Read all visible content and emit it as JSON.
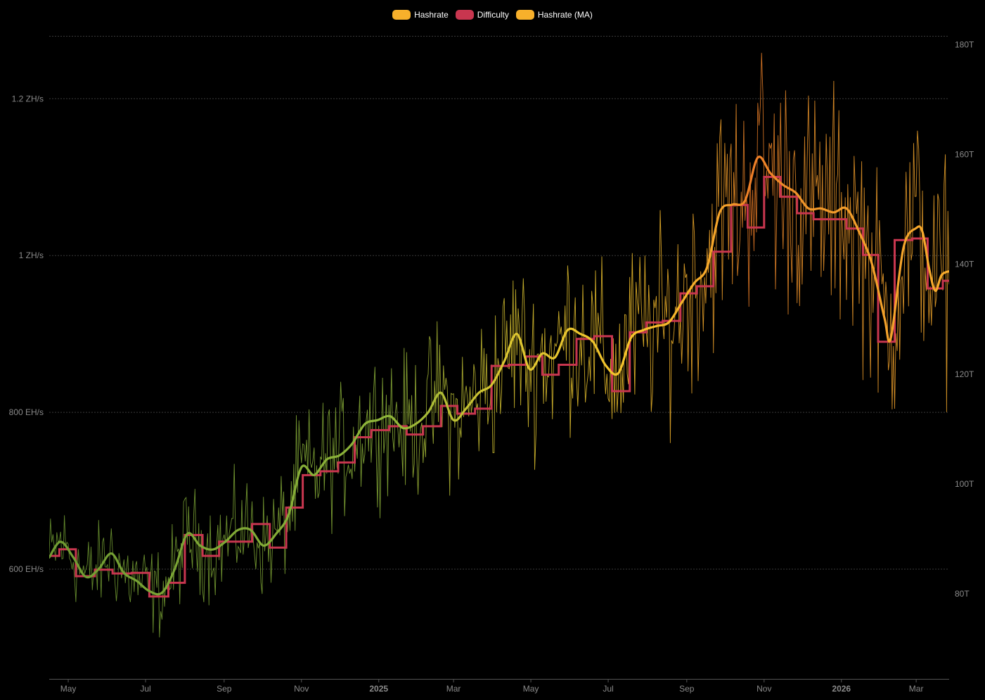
{
  "legend": {
    "items": [
      {
        "label": "Hashrate",
        "color": "#f7b02b"
      },
      {
        "label": "Difficulty",
        "color": "#c8364f"
      },
      {
        "label": "Hashrate (MA)",
        "color": "#f7b02b"
      }
    ]
  },
  "chart_data": {
    "type": "line",
    "title": "",
    "grid": true,
    "legend_position": "top-center",
    "x_range": [
      "2024-04-16",
      "2026-03-27"
    ],
    "x_ticks": [
      {
        "label": "May",
        "date": "2024-05-01",
        "bold": false
      },
      {
        "label": "Jul",
        "date": "2024-07-01",
        "bold": false
      },
      {
        "label": "Sep",
        "date": "2024-09-01",
        "bold": false
      },
      {
        "label": "Nov",
        "date": "2024-11-01",
        "bold": false
      },
      {
        "label": "2025",
        "date": "2025-01-01",
        "bold": true
      },
      {
        "label": "Mar",
        "date": "2025-03-01",
        "bold": false
      },
      {
        "label": "May",
        "date": "2025-05-01",
        "bold": false
      },
      {
        "label": "Jul",
        "date": "2025-07-01",
        "bold": false
      },
      {
        "label": "Sep",
        "date": "2025-09-01",
        "bold": false
      },
      {
        "label": "Nov",
        "date": "2025-11-01",
        "bold": false
      },
      {
        "label": "2026",
        "date": "2026-01-01",
        "bold": true
      },
      {
        "label": "Mar",
        "date": "2026-03-01",
        "bold": false
      }
    ],
    "y_left": {
      "unit": "EH/s",
      "range": [
        460,
        1290
      ],
      "ticks": [
        {
          "value": 600,
          "label": "600 EH/s"
        },
        {
          "value": 800,
          "label": "800 EH/s"
        },
        {
          "value": 1000,
          "label": "1 ZH/s"
        },
        {
          "value": 1200,
          "label": "1.2 ZH/s"
        }
      ]
    },
    "y_right": {
      "unit": "T",
      "range": [
        64.5,
        183
      ],
      "ticks": [
        {
          "value": 80,
          "label": "80T"
        },
        {
          "value": 100,
          "label": "100T"
        },
        {
          "value": 120,
          "label": "120T"
        },
        {
          "value": 140,
          "label": "140T"
        },
        {
          "value": 160,
          "label": "160T"
        },
        {
          "value": 180,
          "label": "180T"
        }
      ]
    },
    "series": [
      {
        "name": "Hashrate (MA)",
        "axis": "left",
        "points": [
          [
            "2024-04-16",
            615
          ],
          [
            "2024-04-25",
            635
          ],
          [
            "2024-05-05",
            615
          ],
          [
            "2024-05-15",
            590
          ],
          [
            "2024-05-25",
            600
          ],
          [
            "2024-06-04",
            620
          ],
          [
            "2024-06-14",
            595
          ],
          [
            "2024-06-24",
            585
          ],
          [
            "2024-07-04",
            572
          ],
          [
            "2024-07-14",
            570
          ],
          [
            "2024-07-24",
            600
          ],
          [
            "2024-08-03",
            645
          ],
          [
            "2024-08-13",
            630
          ],
          [
            "2024-08-23",
            625
          ],
          [
            "2024-09-02",
            635
          ],
          [
            "2024-09-12",
            650
          ],
          [
            "2024-09-22",
            650
          ],
          [
            "2024-10-02",
            630
          ],
          [
            "2024-10-12",
            645
          ],
          [
            "2024-10-22",
            670
          ],
          [
            "2024-11-01",
            730
          ],
          [
            "2024-11-11",
            720
          ],
          [
            "2024-11-21",
            740
          ],
          [
            "2024-12-01",
            745
          ],
          [
            "2024-12-11",
            760
          ],
          [
            "2024-12-21",
            785
          ],
          [
            "2024-12-31",
            790
          ],
          [
            "2025-01-10",
            795
          ],
          [
            "2025-01-20",
            780
          ],
          [
            "2025-01-30",
            785
          ],
          [
            "2025-02-09",
            800
          ],
          [
            "2025-02-19",
            825
          ],
          [
            "2025-03-01",
            790
          ],
          [
            "2025-03-11",
            805
          ],
          [
            "2025-03-21",
            825
          ],
          [
            "2025-03-31",
            835
          ],
          [
            "2025-04-10",
            865
          ],
          [
            "2025-04-20",
            900
          ],
          [
            "2025-04-30",
            855
          ],
          [
            "2025-05-10",
            875
          ],
          [
            "2025-05-20",
            870
          ],
          [
            "2025-05-30",
            905
          ],
          [
            "2025-06-09",
            900
          ],
          [
            "2025-06-19",
            890
          ],
          [
            "2025-06-29",
            860
          ],
          [
            "2025-07-09",
            850
          ],
          [
            "2025-07-19",
            895
          ],
          [
            "2025-07-29",
            905
          ],
          [
            "2025-08-08",
            910
          ],
          [
            "2025-08-18",
            915
          ],
          [
            "2025-08-28",
            940
          ],
          [
            "2025-09-07",
            965
          ],
          [
            "2025-09-17",
            985
          ],
          [
            "2025-09-27",
            1055
          ],
          [
            "2025-10-07",
            1065
          ],
          [
            "2025-10-17",
            1070
          ],
          [
            "2025-10-27",
            1125
          ],
          [
            "2025-11-06",
            1105
          ],
          [
            "2025-11-16",
            1090
          ],
          [
            "2025-11-26",
            1080
          ],
          [
            "2025-12-06",
            1060
          ],
          [
            "2025-12-16",
            1060
          ],
          [
            "2025-12-26",
            1055
          ],
          [
            "2026-01-05",
            1060
          ],
          [
            "2026-01-15",
            1030
          ],
          [
            "2026-01-25",
            990
          ],
          [
            "2026-02-04",
            920
          ],
          [
            "2026-02-09",
            895
          ],
          [
            "2026-02-19",
            1010
          ],
          [
            "2026-03-01",
            1035
          ],
          [
            "2026-03-06",
            1030
          ],
          [
            "2026-03-11",
            985
          ],
          [
            "2026-03-16",
            955
          ],
          [
            "2026-03-21",
            975
          ],
          [
            "2026-03-27",
            980
          ]
        ]
      },
      {
        "name": "Difficulty",
        "axis": "right",
        "step": true,
        "points": [
          [
            "2024-04-16",
            86.9
          ],
          [
            "2024-04-24",
            88.1
          ],
          [
            "2024-05-07",
            83.2
          ],
          [
            "2024-05-22",
            84.4
          ],
          [
            "2024-06-05",
            83.7
          ],
          [
            "2024-06-20",
            83.8
          ],
          [
            "2024-07-04",
            79.5
          ],
          [
            "2024-07-19",
            82.0
          ],
          [
            "2024-08-01",
            90.7
          ],
          [
            "2024-08-15",
            86.9
          ],
          [
            "2024-08-28",
            89.5
          ],
          [
            "2024-09-10",
            89.5
          ],
          [
            "2024-09-23",
            92.7
          ],
          [
            "2024-10-07",
            88.4
          ],
          [
            "2024-10-20",
            95.7
          ],
          [
            "2024-11-02",
            101.6
          ],
          [
            "2024-11-16",
            102.3
          ],
          [
            "2024-11-30",
            103.9
          ],
          [
            "2024-12-13",
            108.5
          ],
          [
            "2024-12-26",
            109.8
          ],
          [
            "2025-01-09",
            110.5
          ],
          [
            "2025-01-23",
            109.0
          ],
          [
            "2025-02-05",
            110.5
          ],
          [
            "2025-02-19",
            114.2
          ],
          [
            "2025-03-04",
            112.8
          ],
          [
            "2025-03-18",
            113.7
          ],
          [
            "2025-03-31",
            121.5
          ],
          [
            "2025-04-14",
            121.7
          ],
          [
            "2025-04-27",
            123.2
          ],
          [
            "2025-05-10",
            119.9
          ],
          [
            "2025-05-23",
            121.7
          ],
          [
            "2025-06-06",
            126.4
          ],
          [
            "2025-06-20",
            126.9
          ],
          [
            "2025-07-04",
            116.9
          ],
          [
            "2025-07-18",
            127.6
          ],
          [
            "2025-07-31",
            129.4
          ],
          [
            "2025-08-13",
            129.7
          ],
          [
            "2025-08-27",
            134.7
          ],
          [
            "2025-09-09",
            136.0
          ],
          [
            "2025-09-22",
            142.3
          ],
          [
            "2025-10-06",
            150.8
          ],
          [
            "2025-10-19",
            146.7
          ],
          [
            "2025-11-01",
            155.9
          ],
          [
            "2025-11-14",
            152.3
          ],
          [
            "2025-11-27",
            149.3
          ],
          [
            "2025-12-10",
            148.2
          ],
          [
            "2025-12-23",
            148.2
          ],
          [
            "2026-01-05",
            146.5
          ],
          [
            "2026-01-18",
            141.7
          ],
          [
            "2026-01-30",
            125.9
          ],
          [
            "2026-02-12",
            144.4
          ],
          [
            "2026-02-26",
            144.7
          ],
          [
            "2026-03-10",
            135.6
          ],
          [
            "2026-03-22",
            137.0
          ]
        ]
      },
      {
        "name": "Hashrate",
        "axis": "left",
        "noisy_daily": true
      }
    ]
  }
}
